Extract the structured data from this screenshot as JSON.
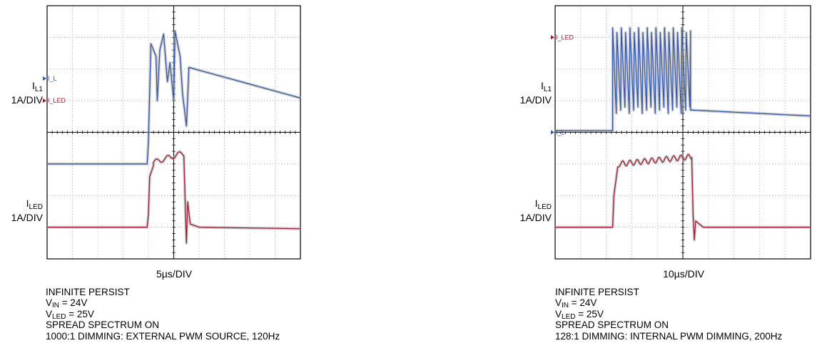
{
  "chart_data": [
    {
      "type": "line",
      "id": "left",
      "time_base": "5µs/DIV",
      "channels": [
        {
          "name": "I_L1",
          "label_main": "I",
          "label_sub": "L1",
          "scale": "1A/DIV",
          "color": "#3355a8",
          "marker": "I_L",
          "ref_div": 1.0,
          "shape": "il1_left"
        },
        {
          "name": "I_LED",
          "label_main": "I",
          "label_sub": "LED",
          "scale": "1A/DIV",
          "color": "#9a1a2e",
          "marker": "I_LED",
          "ref_div": 3.0,
          "shape": "iled_left"
        }
      ],
      "grid": {
        "h_div": 10,
        "v_div": 8
      },
      "notes": [
        {
          "text": "INFINITE PERSIST"
        },
        {
          "main": "V",
          "sub": "IN",
          "rest": " = 24V"
        },
        {
          "main": "V",
          "sub": "LED",
          "rest": " = 25V"
        },
        {
          "text": "SPREAD SPECTRUM ON"
        },
        {
          "text": "1000:1 DIMMING: EXTERNAL PWM SOURCE, 120Hz"
        }
      ]
    },
    {
      "type": "line",
      "id": "right",
      "time_base": "10µs/DIV",
      "channels": [
        {
          "name": "I_L1",
          "label_main": "I",
          "label_sub": "L1",
          "scale": "1A/DIV",
          "color": "#3355a8",
          "marker": "I_L",
          "ref_div": 4.0,
          "shape": "il1_right"
        },
        {
          "name": "I_LED",
          "label_main": "I",
          "label_sub": "LED",
          "scale": "1A/DIV",
          "color": "#9a1a2e",
          "marker": "I_LED",
          "ref_div": 1.0,
          "shape": "iled_right"
        }
      ],
      "grid": {
        "h_div": 10,
        "v_div": 8
      },
      "notes": [
        {
          "text": "INFINITE PERSIST"
        },
        {
          "main": "V",
          "sub": "IN",
          "rest": " = 24V"
        },
        {
          "main": "V",
          "sub": "LED",
          "rest": " = 25V"
        },
        {
          "text": "SPREAD SPECTRUM ON"
        },
        {
          "text": "128:1 DIMMING: INTERNAL PWM DIMMING, 200Hz"
        }
      ]
    }
  ]
}
